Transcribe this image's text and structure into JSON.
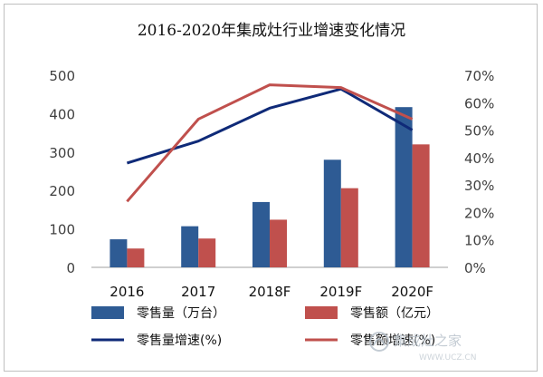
{
  "chart_data": {
    "type": "bar-line-combo",
    "title": "2016-2020年集成灶行业增速变化情况",
    "categories": [
      "2016",
      "2017",
      "2018F",
      "2019F",
      "2020F"
    ],
    "y_left": {
      "min": 0,
      "max": 500,
      "ticks": [
        0,
        100,
        200,
        300,
        400,
        500
      ]
    },
    "y_right": {
      "min": 0,
      "max": 70,
      "ticks": [
        "0%",
        "10%",
        "20%",
        "30%",
        "40%",
        "50%",
        "60%",
        "70%"
      ]
    },
    "grid": false,
    "legend_position": "bottom",
    "series": [
      {
        "name": "零售量（万台）",
        "type": "bar",
        "axis": "left",
        "color": "#2e5b94",
        "values": [
          73,
          107,
          170,
          280,
          417
        ]
      },
      {
        "name": "零售额（亿元）",
        "type": "bar",
        "axis": "left",
        "color": "#c0504d",
        "values": [
          49,
          75,
          124,
          206,
          320
        ]
      },
      {
        "name": "零售量增速(%)",
        "type": "line",
        "axis": "right",
        "color": "#0f2a78",
        "values": [
          38,
          46,
          58,
          65,
          50
        ]
      },
      {
        "name": "零售额增速(%)",
        "type": "line",
        "axis": "right",
        "color": "#c0504d",
        "values": [
          24,
          54,
          66.5,
          65.5,
          54
        ]
      }
    ]
  },
  "watermark": {
    "text": "集成灶之家",
    "sub": "WWW.UCZ.CN"
  }
}
